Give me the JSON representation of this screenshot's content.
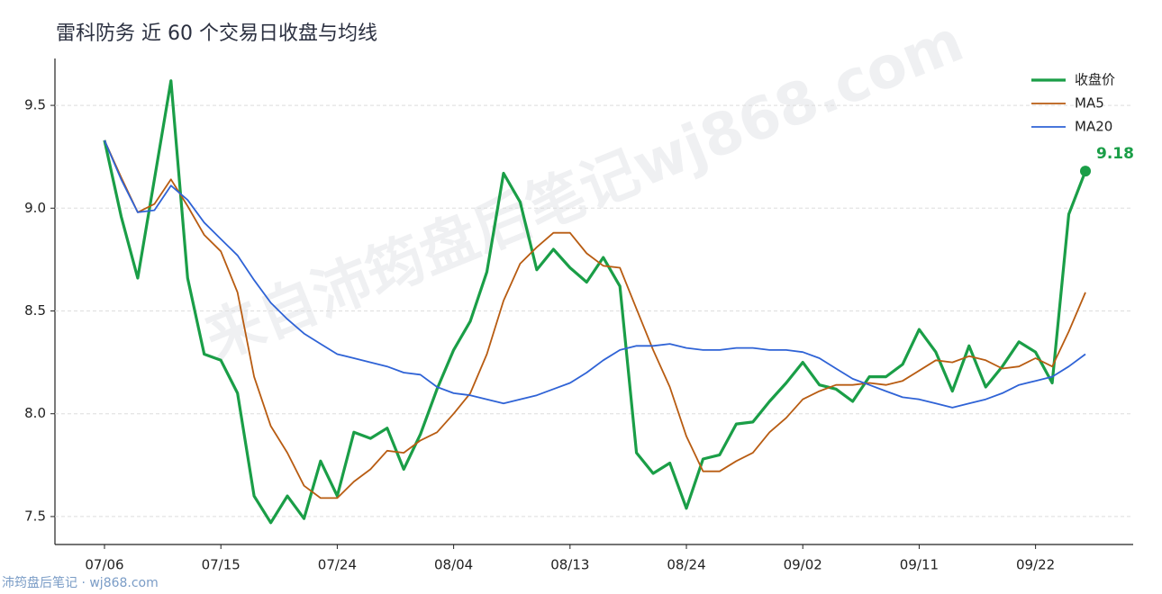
{
  "chart_data": {
    "type": "line",
    "title": "雷科防务 近 60 个交易日收盘与均线",
    "watermark": "来自沛筠盘后笔记wj868.com",
    "footer": "沛筠盘后笔记 · wj868.com",
    "categories": [
      "07/06",
      null,
      null,
      null,
      null,
      null,
      null,
      "07/15",
      null,
      null,
      null,
      null,
      null,
      null,
      "07/24",
      null,
      null,
      null,
      null,
      null,
      null,
      "08/04",
      null,
      null,
      null,
      null,
      null,
      null,
      "08/13",
      null,
      null,
      null,
      null,
      null,
      null,
      "08/24",
      null,
      null,
      null,
      null,
      null,
      null,
      "09/02",
      null,
      null,
      null,
      null,
      null,
      null,
      "09/11",
      null,
      null,
      null,
      null,
      null,
      null,
      "09/22",
      null,
      null,
      null
    ],
    "series": [
      {
        "name": "收盘价",
        "color": "#1a9e47",
        "width": 3.2,
        "values": [
          9.33,
          8.96,
          8.66,
          9.14,
          9.62,
          8.66,
          8.29,
          8.26,
          8.1,
          7.6,
          7.47,
          7.6,
          7.49,
          7.77,
          7.6,
          7.91,
          7.88,
          7.93,
          7.73,
          7.9,
          8.12,
          8.31,
          8.45,
          8.69,
          9.17,
          9.03,
          8.7,
          8.8,
          8.71,
          8.64,
          8.76,
          8.62,
          7.81,
          7.71,
          7.76,
          7.54,
          7.78,
          7.8,
          7.95,
          7.96,
          8.06,
          8.15,
          8.25,
          8.14,
          8.12,
          8.06,
          8.18,
          8.18,
          8.24,
          8.41,
          8.3,
          8.11,
          8.33,
          8.13,
          8.23,
          8.35,
          8.3,
          8.15,
          8.97,
          9.18
        ]
      },
      {
        "name": "MA5",
        "color": "#b85c12",
        "width": 1.8,
        "values": [
          9.33,
          9.15,
          8.98,
          9.02,
          9.14,
          9.01,
          8.87,
          8.79,
          8.59,
          8.18,
          7.94,
          7.81,
          7.65,
          7.59,
          7.59,
          7.67,
          7.73,
          7.82,
          7.81,
          7.87,
          7.91,
          8.0,
          8.1,
          8.29,
          8.55,
          8.73,
          8.81,
          8.88,
          8.88,
          8.78,
          8.72,
          8.71,
          8.51,
          8.31,
          8.13,
          7.89,
          7.72,
          7.72,
          7.77,
          7.81,
          7.91,
          7.98,
          8.07,
          8.11,
          8.14,
          8.14,
          8.15,
          8.14,
          8.16,
          8.21,
          8.26,
          8.25,
          8.28,
          8.26,
          8.22,
          8.23,
          8.27,
          8.23,
          8.4,
          8.59
        ]
      },
      {
        "name": "MA20",
        "color": "#2f63d6",
        "width": 1.8,
        "values": [
          9.33,
          9.14,
          8.98,
          8.99,
          9.11,
          9.04,
          8.93,
          8.85,
          8.77,
          8.65,
          8.54,
          8.46,
          8.39,
          8.34,
          8.29,
          8.27,
          8.25,
          8.23,
          8.2,
          8.19,
          8.13,
          8.1,
          8.09,
          8.07,
          8.05,
          8.07,
          8.09,
          8.12,
          8.15,
          8.2,
          8.26,
          8.31,
          8.33,
          8.33,
          8.34,
          8.32,
          8.31,
          8.31,
          8.32,
          8.32,
          8.31,
          8.31,
          8.3,
          8.27,
          8.22,
          8.17,
          8.14,
          8.11,
          8.08,
          8.07,
          8.05,
          8.03,
          8.05,
          8.07,
          8.1,
          8.14,
          8.16,
          8.18,
          8.23,
          8.29
        ]
      }
    ],
    "ylim": [
      7.364,
      9.728
    ],
    "yticks": [
      7.5,
      {
        "value": 8,
        "label": "8.0"
      },
      8.5,
      {
        "value": 9,
        "label": "9.0"
      },
      9.5
    ],
    "grid": true,
    "legend": "upper right"
  }
}
